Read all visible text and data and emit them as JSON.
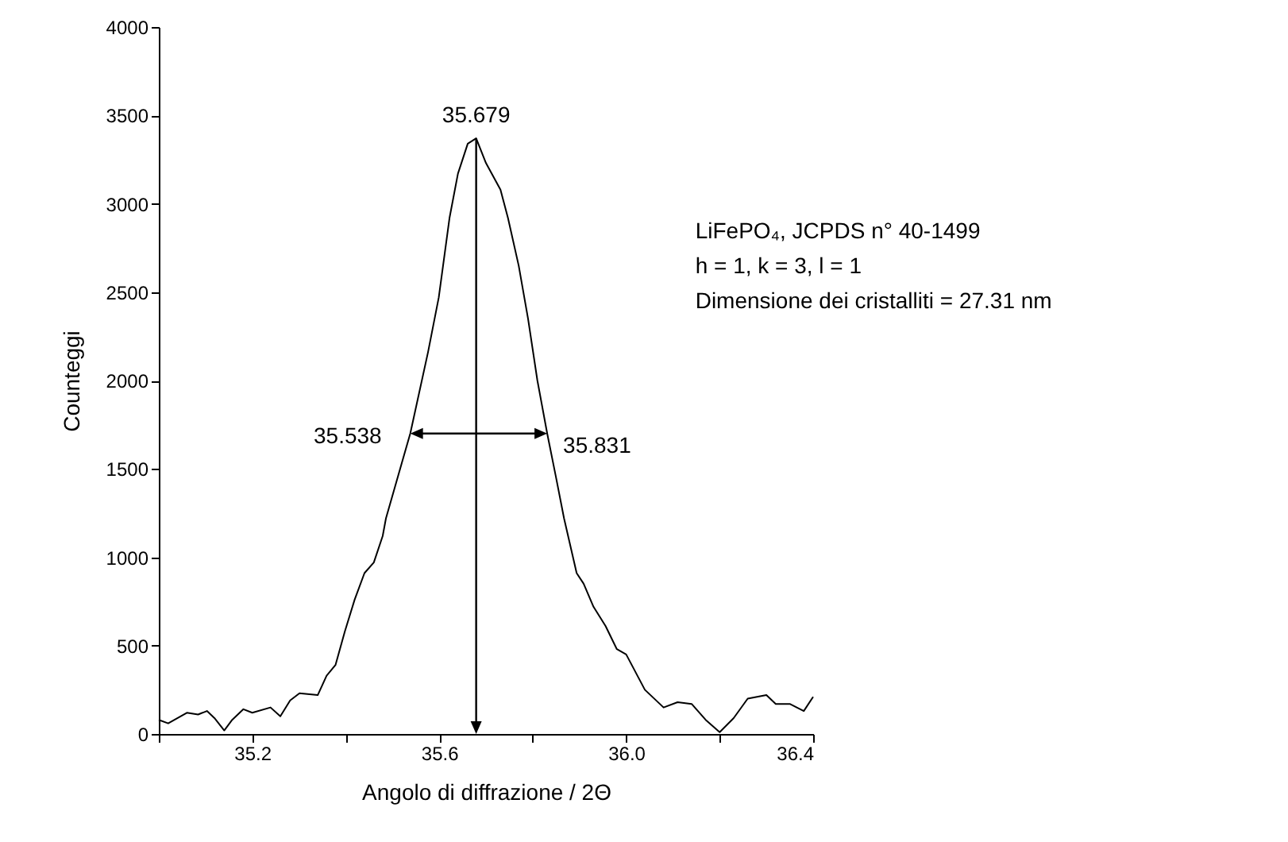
{
  "chart_data": {
    "type": "line",
    "xlabel": "Angolo di diffrazione / 2Θ",
    "ylabel": "Counteggi",
    "x": [
      35.0,
      35.02,
      35.06,
      35.084,
      35.103,
      35.119,
      35.14,
      35.157,
      35.181,
      35.2,
      35.239,
      35.26,
      35.281,
      35.301,
      35.34,
      35.359,
      35.378,
      35.398,
      35.419,
      35.44,
      35.46,
      35.479,
      35.486,
      35.538,
      35.576,
      35.599,
      35.622,
      35.64,
      35.661,
      35.679,
      35.7,
      35.731,
      35.747,
      35.77,
      35.79,
      35.81,
      35.831,
      35.85,
      35.867,
      35.894,
      35.909,
      35.93,
      35.956,
      35.98,
      36.0,
      36.04,
      36.08,
      36.11,
      36.14,
      36.17,
      36.2,
      36.23,
      36.26,
      36.3,
      36.32,
      36.35,
      36.38,
      36.4
    ],
    "series": [
      {
        "color": "#000000",
        "values": [
          80,
          60,
          120,
          110,
          130,
          90,
          20,
          80,
          140,
          120,
          150,
          100,
          190,
          230,
          220,
          330,
          390,
          580,
          760,
          910,
          970,
          1120,
          1220,
          1700,
          2160,
          2470,
          2920,
          3170,
          3340,
          3370,
          3230,
          3080,
          2920,
          2650,
          2350,
          2000,
          1700,
          1450,
          1220,
          910,
          850,
          720,
          610,
          480,
          450,
          250,
          150,
          180,
          170,
          80,
          10,
          90,
          200,
          220,
          170,
          170,
          130,
          210
        ]
      }
    ],
    "xlim": [
      35.0,
      36.4
    ],
    "xticks": [
      {
        "value": 35.0,
        "label": null
      },
      35.2,
      {
        "value": 35.4,
        "label": null
      },
      35.6,
      {
        "value": 35.8,
        "label": null
      },
      {
        "value": 36.0,
        "label": "36.0"
      },
      {
        "value": 36.2,
        "label": null
      },
      36.4
    ],
    "ylim": [
      0,
      4000
    ],
    "yticks": [
      0,
      500,
      1000,
      1500,
      2000,
      2500,
      3000,
      3500,
      4000
    ],
    "grid": false,
    "marker": "none",
    "line_style": "solid",
    "annotations": [
      {
        "text": "35.679",
        "x": 35.679,
        "y": 3370
      },
      {
        "text": "35.538",
        "x": 35.538,
        "y": 1700
      },
      {
        "text": "35.831",
        "x": 35.831,
        "y": 1700
      },
      "LiFePO₄, JCPDS n° 40-1499",
      "h = 1, k = 3, l = 1",
      "Dimensione dei cristalliti = 27.31 nm"
    ]
  }
}
